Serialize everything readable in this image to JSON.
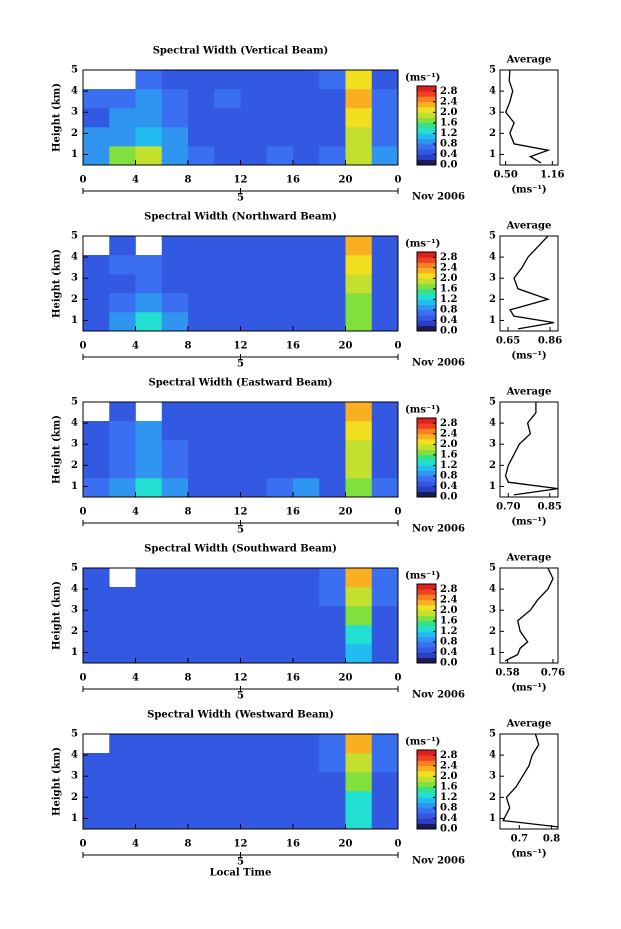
{
  "chart_data": [
    {
      "type": "heatmap",
      "title": "Spectral Width (Vertical Beam)",
      "ylabel": "Height (km)",
      "day": "5",
      "month_year": "Nov 2006",
      "x": [
        0,
        2,
        4,
        6,
        8,
        10,
        12,
        14,
        16,
        18,
        20,
        22,
        24
      ],
      "y": [
        0.5,
        1.4,
        2.3,
        3.2,
        4.1,
        5.0
      ],
      "values": [
        [
          0.9,
          1.6,
          1.8,
          0.9,
          0.7,
          0.6,
          0.6,
          0.7,
          0.6,
          0.7,
          1.9,
          0.8
        ],
        [
          0.8,
          0.9,
          1.0,
          0.8,
          0.6,
          0.6,
          0.6,
          0.6,
          0.6,
          0.6,
          1.8,
          0.7
        ],
        [
          0.6,
          0.8,
          0.9,
          0.7,
          0.6,
          0.6,
          0.5,
          0.6,
          0.6,
          0.6,
          2.0,
          0.7
        ],
        [
          0.7,
          0.7,
          0.8,
          0.7,
          0.5,
          0.7,
          0.6,
          0.6,
          0.5,
          0.6,
          2.2,
          0.7
        ],
        [
          null,
          null,
          0.7,
          0.6,
          0.6,
          0.6,
          0.6,
          0.5,
          0.6,
          0.7,
          2.1,
          0.6
        ]
      ],
      "xlim": [
        0,
        24
      ],
      "xticks": [
        0,
        4,
        8,
        12,
        16,
        20,
        {
          "value": 24,
          "label": "0"
        }
      ],
      "ylim": [
        0.5,
        5.0
      ],
      "yticks": [
        1,
        2,
        3,
        4,
        5
      ],
      "colorbar_label": "(ms⁻¹)",
      "clim": [
        0,
        3.0
      ],
      "cticks": [
        {
          "value": 0,
          "label": "0.0"
        },
        0.4,
        0.8,
        1.2,
        1.6,
        {
          "value": 2,
          "label": "2.0"
        },
        2.4,
        2.8
      ],
      "profile": {
        "type": "line",
        "title": "Average",
        "xlabel": "(ms⁻¹)",
        "y": [
          0.6,
          0.9,
          1.2,
          1.5,
          2.0,
          2.5,
          3.0,
          3.5,
          4.0,
          4.5,
          5.0
        ],
        "values": [
          1.0,
          0.85,
          1.1,
          0.62,
          0.56,
          0.62,
          0.5,
          0.56,
          0.6,
          0.55,
          0.56
        ],
        "xlim": [
          0.42,
          1.24
        ],
        "xticks": [
          {
            "value": 0.5,
            "label": "0.50"
          },
          1.16
        ],
        "ylim": [
          0.5,
          5.0
        ],
        "yticks": [
          1,
          2,
          3,
          4,
          5
        ]
      }
    },
    {
      "type": "heatmap",
      "title": "Spectral Width (Northward Beam)",
      "ylabel": "Height (km)",
      "day": "5",
      "month_year": "Nov 2006",
      "x": [
        0,
        2,
        4,
        6,
        8,
        10,
        12,
        14,
        16,
        18,
        20,
        22,
        24
      ],
      "y": [
        0.5,
        1.4,
        2.3,
        3.2,
        4.1,
        5.0
      ],
      "values": [
        [
          0.6,
          0.9,
          1.3,
          0.8,
          0.6,
          0.6,
          0.6,
          0.6,
          0.6,
          0.6,
          1.6,
          0.6
        ],
        [
          0.6,
          0.7,
          0.8,
          0.7,
          0.6,
          0.5,
          0.6,
          0.6,
          0.5,
          0.6,
          1.7,
          0.6
        ],
        [
          0.6,
          0.6,
          0.7,
          0.6,
          0.5,
          0.5,
          0.5,
          0.6,
          0.5,
          0.6,
          1.9,
          0.6
        ],
        [
          0.6,
          0.7,
          0.7,
          0.6,
          0.5,
          0.6,
          0.5,
          0.5,
          0.6,
          0.6,
          2.1,
          0.6
        ],
        [
          null,
          0.6,
          null,
          0.6,
          0.6,
          0.6,
          0.6,
          0.6,
          0.6,
          0.6,
          2.2,
          0.6
        ]
      ],
      "xlim": [
        0,
        24
      ],
      "xticks": [
        0,
        4,
        8,
        12,
        16,
        20,
        {
          "value": 24,
          "label": "0"
        }
      ],
      "ylim": [
        0.5,
        5.0
      ],
      "yticks": [
        1,
        2,
        3,
        4,
        5
      ],
      "colorbar_label": "(ms⁻¹)",
      "clim": [
        0,
        3.0
      ],
      "cticks": [
        {
          "value": 0,
          "label": "0.0"
        },
        0.4,
        0.8,
        1.2,
        1.6,
        {
          "value": 2,
          "label": "2.0"
        },
        2.4,
        2.8
      ],
      "profile": {
        "type": "line",
        "title": "Average",
        "xlabel": "(ms⁻¹)",
        "y": [
          0.6,
          0.9,
          1.2,
          1.5,
          2.0,
          2.5,
          3.0,
          3.5,
          4.0,
          4.5,
          5.0
        ],
        "values": [
          0.7,
          0.88,
          0.68,
          0.66,
          0.85,
          0.7,
          0.68,
          0.72,
          0.75,
          0.8,
          0.85
        ],
        "xlim": [
          0.61,
          0.9
        ],
        "xticks": [
          0.65,
          0.86
        ],
        "ylim": [
          0.5,
          5.0
        ],
        "yticks": [
          1,
          2,
          3,
          4,
          5
        ]
      }
    },
    {
      "type": "heatmap",
      "title": "Spectral Width (Eastward Beam)",
      "ylabel": "Height (km)",
      "day": "5",
      "month_year": "Nov 2006",
      "x": [
        0,
        2,
        4,
        6,
        8,
        10,
        12,
        14,
        16,
        18,
        20,
        22,
        24
      ],
      "y": [
        0.5,
        1.4,
        2.3,
        3.2,
        4.1,
        5.0
      ],
      "values": [
        [
          0.7,
          0.8,
          1.3,
          0.8,
          0.6,
          0.6,
          0.6,
          0.7,
          0.8,
          0.6,
          1.7,
          0.7
        ],
        [
          0.6,
          0.7,
          0.9,
          0.7,
          0.5,
          0.6,
          0.5,
          0.6,
          0.6,
          0.6,
          1.8,
          0.6
        ],
        [
          0.6,
          0.7,
          0.8,
          0.7,
          0.5,
          0.5,
          0.6,
          0.5,
          0.6,
          0.6,
          1.9,
          0.6
        ],
        [
          0.6,
          0.7,
          0.8,
          0.6,
          0.6,
          0.6,
          0.5,
          0.6,
          0.6,
          0.6,
          2.0,
          0.6
        ],
        [
          null,
          0.6,
          null,
          0.6,
          0.6,
          0.6,
          0.6,
          0.6,
          0.6,
          0.6,
          2.2,
          0.6
        ]
      ],
      "xlim": [
        0,
        24
      ],
      "xticks": [
        0,
        4,
        8,
        12,
        16,
        20,
        {
          "value": 24,
          "label": "0"
        }
      ],
      "ylim": [
        0.5,
        5.0
      ],
      "yticks": [
        1,
        2,
        3,
        4,
        5
      ],
      "colorbar_label": "(ms⁻¹)",
      "clim": [
        0,
        3.0
      ],
      "cticks": [
        {
          "value": 0,
          "label": "0.0"
        },
        0.4,
        0.8,
        1.2,
        1.6,
        {
          "value": 2,
          "label": "2.0"
        },
        2.4,
        2.8
      ],
      "profile": {
        "type": "line",
        "title": "Average",
        "xlabel": "(ms⁻¹)",
        "y": [
          0.6,
          0.9,
          1.2,
          1.5,
          2.0,
          2.5,
          3.0,
          3.5,
          4.0,
          4.5,
          5.0
        ],
        "values": [
          0.72,
          0.88,
          0.7,
          0.69,
          0.7,
          0.72,
          0.74,
          0.78,
          0.77,
          0.8,
          0.8
        ],
        "xlim": [
          0.67,
          0.88
        ],
        "xticks": [
          {
            "value": 0.7,
            "label": "0.70"
          },
          0.85
        ],
        "ylim": [
          0.5,
          5.0
        ],
        "yticks": [
          1,
          2,
          3,
          4,
          5
        ]
      }
    },
    {
      "type": "heatmap",
      "title": "Spectral Width (Southward Beam)",
      "ylabel": "Height (km)",
      "day": "5",
      "month_year": "Nov 2006",
      "x": [
        0,
        2,
        4,
        6,
        8,
        10,
        12,
        14,
        16,
        18,
        20,
        22,
        24
      ],
      "y": [
        0.5,
        1.4,
        2.3,
        3.2,
        4.1,
        5.0
      ],
      "values": [
        [
          0.5,
          0.6,
          0.6,
          0.6,
          0.5,
          0.5,
          0.5,
          0.6,
          0.5,
          0.6,
          1.2,
          0.6
        ],
        [
          0.5,
          0.6,
          0.6,
          0.6,
          0.5,
          0.5,
          0.5,
          0.5,
          0.5,
          0.6,
          1.4,
          0.6
        ],
        [
          0.5,
          0.6,
          0.6,
          0.6,
          0.5,
          0.5,
          0.5,
          0.5,
          0.6,
          0.6,
          1.6,
          0.6
        ],
        [
          0.6,
          0.6,
          0.6,
          0.6,
          0.6,
          0.6,
          0.6,
          0.6,
          0.6,
          0.7,
          1.9,
          0.7
        ],
        [
          0.6,
          null,
          0.6,
          0.6,
          0.6,
          0.6,
          0.6,
          0.6,
          0.6,
          0.7,
          2.2,
          0.7
        ]
      ],
      "xlim": [
        0,
        24
      ],
      "xticks": [
        0,
        4,
        8,
        12,
        16,
        20,
        {
          "value": 24,
          "label": "0"
        }
      ],
      "ylim": [
        0.5,
        5.0
      ],
      "yticks": [
        1,
        2,
        3,
        4,
        5
      ],
      "colorbar_label": "(ms⁻¹)",
      "clim": [
        0,
        3.0
      ],
      "cticks": [
        {
          "value": 0,
          "label": "0.0"
        },
        0.4,
        0.8,
        1.2,
        1.6,
        {
          "value": 2,
          "label": "2.0"
        },
        2.4,
        2.8
      ],
      "profile": {
        "type": "line",
        "title": "Average",
        "xlabel": "(ms⁻¹)",
        "y": [
          0.6,
          0.9,
          1.2,
          1.5,
          2.0,
          2.5,
          3.0,
          3.5,
          4.0,
          4.5,
          5.0
        ],
        "values": [
          0.57,
          0.62,
          0.63,
          0.66,
          0.63,
          0.62,
          0.67,
          0.7,
          0.74,
          0.76,
          0.74
        ],
        "xlim": [
          0.55,
          0.78
        ],
        "xticks": [
          0.58,
          0.76
        ],
        "ylim": [
          0.5,
          5.0
        ],
        "yticks": [
          1,
          2,
          3,
          4,
          5
        ]
      }
    },
    {
      "type": "heatmap",
      "title": "Spectral Width (Westward Beam)",
      "ylabel": "Height (km)",
      "xlabel": "Local Time",
      "day": "5",
      "month_year": "Nov 2006",
      "x": [
        0,
        2,
        4,
        6,
        8,
        10,
        12,
        14,
        16,
        18,
        20,
        22,
        24
      ],
      "y": [
        0.5,
        1.4,
        2.3,
        3.2,
        4.1,
        5.0
      ],
      "values": [
        [
          0.6,
          0.6,
          0.6,
          0.6,
          0.5,
          0.5,
          0.5,
          0.6,
          0.6,
          0.6,
          1.3,
          0.6
        ],
        [
          0.5,
          0.6,
          0.6,
          0.6,
          0.5,
          0.5,
          0.5,
          0.5,
          0.5,
          0.6,
          1.4,
          0.6
        ],
        [
          0.5,
          0.6,
          0.6,
          0.6,
          0.5,
          0.5,
          0.5,
          0.6,
          0.6,
          0.6,
          1.6,
          0.6
        ],
        [
          0.6,
          0.6,
          0.6,
          0.6,
          0.6,
          0.6,
          0.6,
          0.6,
          0.6,
          0.7,
          1.9,
          0.7
        ],
        [
          null,
          0.6,
          0.6,
          0.6,
          0.6,
          0.6,
          0.6,
          0.6,
          0.6,
          0.7,
          2.2,
          0.7
        ]
      ],
      "xlim": [
        0,
        24
      ],
      "xticks": [
        0,
        4,
        8,
        12,
        16,
        20,
        {
          "value": 24,
          "label": "0"
        }
      ],
      "ylim": [
        0.5,
        5.0
      ],
      "yticks": [
        1,
        2,
        3,
        4,
        5
      ],
      "colorbar_label": "(ms⁻¹)",
      "clim": [
        0,
        3.0
      ],
      "cticks": [
        {
          "value": 0,
          "label": "0.0"
        },
        0.4,
        0.8,
        1.2,
        1.6,
        {
          "value": 2,
          "label": "2.0"
        },
        2.4,
        2.8
      ],
      "profile": {
        "type": "line",
        "title": "Average",
        "xlabel": "(ms⁻¹)",
        "y": [
          0.6,
          0.9,
          1.2,
          1.5,
          2.0,
          2.5,
          3.0,
          3.5,
          4.0,
          4.5,
          5.0
        ],
        "values": [
          0.82,
          0.65,
          0.66,
          0.67,
          0.66,
          0.69,
          0.71,
          0.73,
          0.74,
          0.76,
          0.75
        ],
        "xlim": [
          0.64,
          0.82
        ],
        "xticks": [
          0.7,
          0.8
        ],
        "ylim": [
          0.5,
          5.0
        ],
        "yticks": [
          1,
          2,
          3,
          4,
          5
        ]
      }
    }
  ],
  "colorscale": [
    "#1c1c55",
    "#2b3fc4",
    "#3358e2",
    "#3b6ff2",
    "#2f95f0",
    "#22bdf0",
    "#22dfd2",
    "#33e08f",
    "#82e03e",
    "#c4e02e",
    "#f2e020",
    "#f8b020",
    "#f78020",
    "#f04222",
    "#de2020"
  ]
}
